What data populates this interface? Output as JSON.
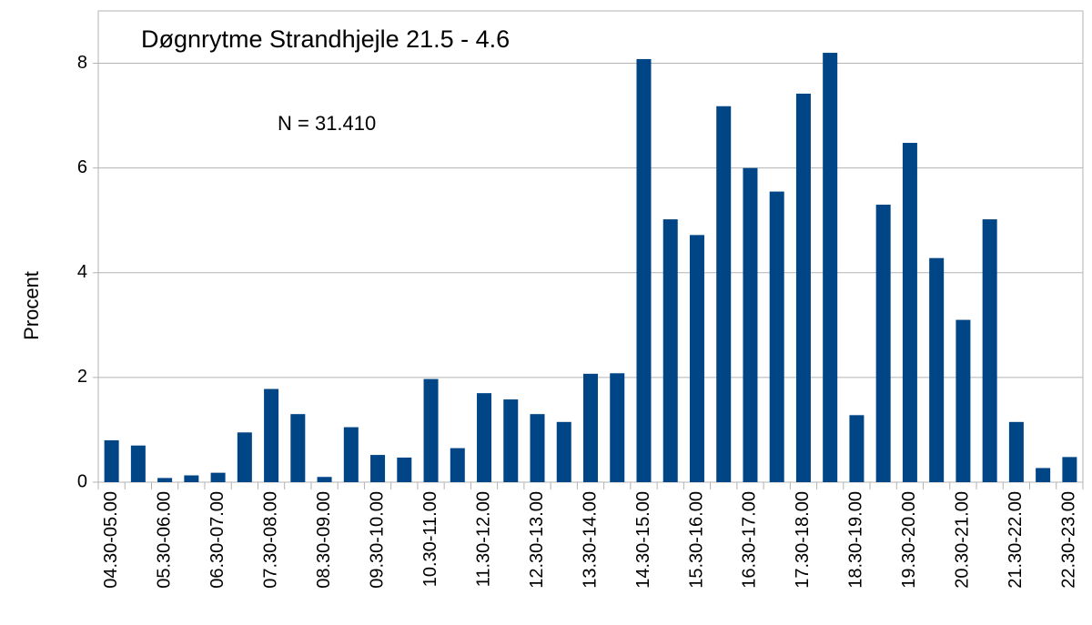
{
  "chart_data": {
    "type": "bar",
    "title": "Døgnrytme Strandhjejle 21.5 - 4.6",
    "annotation": "N = 31.410",
    "y_label": "Procent",
    "categories": [
      "04.30-05.00",
      null,
      "05.30-06.00",
      null,
      "06.30-07.00",
      null,
      "07.30-08.00",
      null,
      "08.30-09.00",
      null,
      "09.30-10.00",
      null,
      "10.30-11.00",
      null,
      "11.30-12.00",
      null,
      "12.30-13.00",
      null,
      "13.30-14.00",
      null,
      "14.30-15.00",
      null,
      "15.30-16.00",
      null,
      "16.30-17.00",
      null,
      "17.30-18.00",
      null,
      "18.30-19.00",
      null,
      "19.30-20.00",
      null,
      "20.30-21.00",
      null,
      "21.30-22.00",
      null,
      "22.30-23.00"
    ],
    "values": [
      0.8,
      0.7,
      0.08,
      0.13,
      0.18,
      0.95,
      1.78,
      1.3,
      0.1,
      1.05,
      0.52,
      0.47,
      1.97,
      0.65,
      1.7,
      1.58,
      1.3,
      1.15,
      2.07,
      2.08,
      8.08,
      5.02,
      4.72,
      7.18,
      6.0,
      5.55,
      7.42,
      8.2,
      1.28,
      5.3,
      6.48,
      4.28,
      3.1,
      5.02,
      1.15,
      0.27,
      0.48
    ],
    "color": "#004586",
    "ylim": [
      0,
      9
    ],
    "yticks": [
      0,
      2,
      4,
      6,
      8
    ],
    "grid": true
  }
}
